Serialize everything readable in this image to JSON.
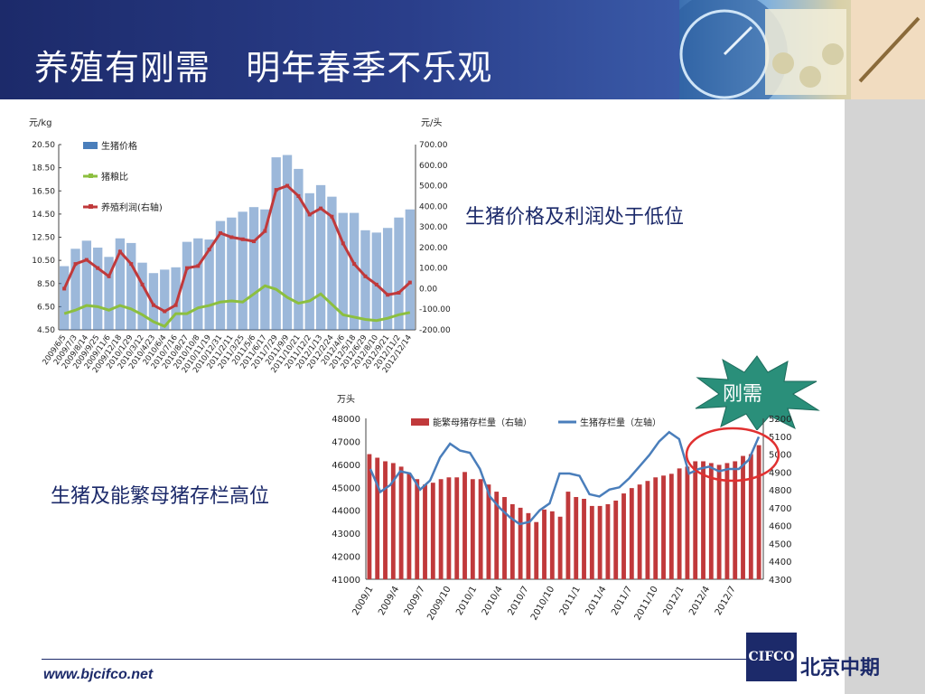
{
  "slide": {
    "title": "养殖有刚需   明年春季不乐观",
    "note_top": "生猪价格及利润处于低位",
    "note_bottom": "生猪及能繁母猪存栏高位",
    "badge": "刚需",
    "url": "www.bjcifco.net",
    "logo": "CIFCO",
    "company": "北京中期"
  },
  "colors": {
    "header": "#1c2a6a",
    "bar_blue": "#4a7ebb",
    "line_green": "#8cbf3f",
    "line_red": "#c0393b",
    "bar_red": "#c0393b",
    "line_blue": "#4a7ebb",
    "badge": "#2a8f7a",
    "circle": "#e03030"
  },
  "chart_data": [
    {
      "type": "bar",
      "left_unit": "元/kg",
      "right_unit": "元/头",
      "yticks_left": [
        "20.50",
        "18.50",
        "16.50",
        "14.50",
        "12.50",
        "10.50",
        "8.50",
        "6.50",
        "4.50"
      ],
      "yticks_right": [
        "700.00",
        "600.00",
        "500.00",
        "400.00",
        "300.00",
        "200.00",
        "100.00",
        "0.00",
        "-100.00",
        "-200.00"
      ],
      "ylim_left": [
        4.5,
        20.5
      ],
      "ylim_right": [
        -200,
        700
      ],
      "x": [
        "2009/6/5",
        "2009/7/3",
        "2009/8/14",
        "2009/9/25",
        "2009/11/6",
        "2009/12/18",
        "2010/1/29",
        "2010/3/12",
        "2010/4/23",
        "2010/6/4",
        "2010/7/16",
        "2010/8/27",
        "2010/10/8",
        "2010/11/19",
        "2010/12/31",
        "2011/2/11",
        "2011/3/25",
        "2011/5/6",
        "2011/6/17",
        "2011/7/29",
        "2011/9/9",
        "2011/10/21",
        "2011/12/2",
        "2012/1/13",
        "2012/2/24",
        "2012/4/6",
        "2012/5/18",
        "2012/6/29",
        "2012/8/10",
        "2012/9/21",
        "2012/11/2",
        "2012/12/14"
      ],
      "series": [
        {
          "name": "生猪价格",
          "axis": "left",
          "kind": "bar",
          "values": [
            10.0,
            11.5,
            12.2,
            11.6,
            10.8,
            12.4,
            12.0,
            10.3,
            9.4,
            9.7,
            9.9,
            12.1,
            12.4,
            12.3,
            13.9,
            14.2,
            14.7,
            15.1,
            14.9,
            19.4,
            19.6,
            18.4,
            16.3,
            17.0,
            16.0,
            14.6,
            14.6,
            13.1,
            12.9,
            13.3,
            14.2,
            14.9
          ]
        },
        {
          "name": "猪粮比",
          "axis": "left",
          "kind": "line",
          "values": [
            5.9,
            6.2,
            6.6,
            6.5,
            6.2,
            6.6,
            6.3,
            5.8,
            5.2,
            4.8,
            5.9,
            5.9,
            6.4,
            6.6,
            6.9,
            7.0,
            6.9,
            7.6,
            8.3,
            8.0,
            7.3,
            6.8,
            7.0,
            7.6,
            6.7,
            5.8,
            5.6,
            5.4,
            5.3,
            5.5,
            5.8,
            6.0
          ]
        },
        {
          "name": "养殖利润(右轴)",
          "axis": "right",
          "kind": "line",
          "values": [
            0,
            120,
            140,
            100,
            60,
            180,
            120,
            20,
            -80,
            -110,
            -80,
            100,
            110,
            190,
            270,
            250,
            240,
            230,
            280,
            480,
            500,
            450,
            360,
            390,
            350,
            220,
            120,
            60,
            20,
            -30,
            -20,
            30
          ]
        }
      ]
    },
    {
      "type": "bar",
      "left_unit": "万头",
      "yticks_left": [
        "48000",
        "47000",
        "46000",
        "45000",
        "44000",
        "43000",
        "42000",
        "41000"
      ],
      "yticks_right": [
        "5200",
        "5100",
        "5000",
        "4900",
        "4800",
        "4700",
        "4600",
        "4500",
        "4400",
        "4300"
      ],
      "ylim_left": [
        41000,
        48000
      ],
      "ylim_right": [
        4300,
        5200
      ],
      "x_labels": [
        "2009/1",
        "2009/4",
        "2009/7",
        "2009/10",
        "2010/1",
        "2010/4",
        "2010/7",
        "2010/10",
        "2011/1",
        "2011/4",
        "2011/7",
        "2011/10",
        "2012/1",
        "2012/4",
        "2012/7"
      ],
      "series": [
        {
          "name": "能繁母猪存栏量（右轴）",
          "axis": "right",
          "kind": "bar",
          "values": [
            5000,
            4980,
            4960,
            4950,
            4930,
            4890,
            4860,
            4830,
            4840,
            4860,
            4870,
            4870,
            4900,
            4860,
            4860,
            4830,
            4790,
            4760,
            4720,
            4700,
            4670,
            4620,
            4690,
            4680,
            4650,
            4790,
            4760,
            4750,
            4710,
            4710,
            4720,
            4740,
            4780,
            4810,
            4830,
            4850,
            4870,
            4880,
            4890,
            4920,
            4930,
            4960,
            4960,
            4950,
            4940,
            4950,
            4960,
            4990,
            5000,
            5050
          ]
        },
        {
          "name": "生猪存栏量（左轴）",
          "axis": "left",
          "kind": "line",
          "values": [
            45800,
            44800,
            45100,
            45700,
            45600,
            44900,
            45300,
            46300,
            46900,
            46600,
            46500,
            45800,
            44600,
            44100,
            43700,
            43400,
            43500,
            44000,
            44300,
            45600,
            45600,
            45500,
            44700,
            44600,
            44900,
            45000,
            45400,
            45900,
            46400,
            47000,
            47400,
            47100,
            45600,
            45800,
            45900,
            45700,
            45800,
            45800,
            46200,
            47200
          ]
        }
      ]
    }
  ]
}
